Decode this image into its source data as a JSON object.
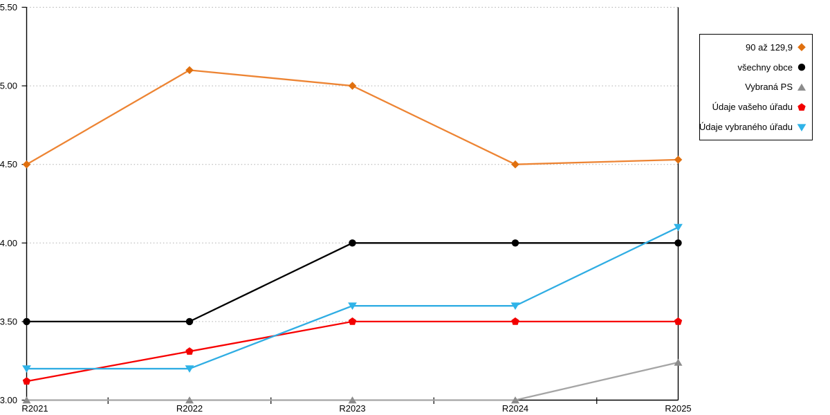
{
  "chart_data": {
    "type": "line",
    "title": "",
    "xlabel": "",
    "ylabel": "",
    "categories": [
      "R2021",
      "R2022",
      "R2023",
      "R2024",
      "R2025"
    ],
    "series": [
      {
        "name": "90 až 129,9",
        "marker": "diamond",
        "line_color": "#ED8433",
        "marker_color": "#E0700F",
        "values": [
          4.5,
          5.1,
          5.0,
          4.5,
          4.53
        ]
      },
      {
        "name": "všechny obce",
        "marker": "circle",
        "line_color": "#000000",
        "marker_color": "#000000",
        "values": [
          3.5,
          3.5,
          4.0,
          4.0,
          4.0
        ]
      },
      {
        "name": "Vybraná PS",
        "marker": "triangle-up",
        "line_color": "#A5A5A5",
        "marker_color": "#8C8C8C",
        "values": [
          3.0,
          3.0,
          3.0,
          3.0,
          3.24
        ]
      },
      {
        "name": "Údaje vašeho úřadu",
        "marker": "pentagon",
        "line_color": "#F70000",
        "marker_color": "#F20000",
        "values": [
          3.12,
          3.31,
          3.5,
          3.5,
          3.5
        ]
      },
      {
        "name": "Údaje vybraného úřadu",
        "marker": "triangle-down",
        "line_color": "#2FADE3",
        "marker_color": "#2FB3E8",
        "values": [
          3.2,
          3.2,
          3.6,
          3.6,
          4.1
        ]
      }
    ],
    "ylim": [
      3.0,
      5.5
    ],
    "ytick_step": 0.5,
    "ytick_labels": [
      "3.00",
      "3.50",
      "4.00",
      "4.50",
      "5.00",
      "5.50"
    ],
    "grid": "horizontal-dotted",
    "gridline_color": "#ADADAD",
    "axis_color": "#000000",
    "legend_position": "right-outside"
  }
}
